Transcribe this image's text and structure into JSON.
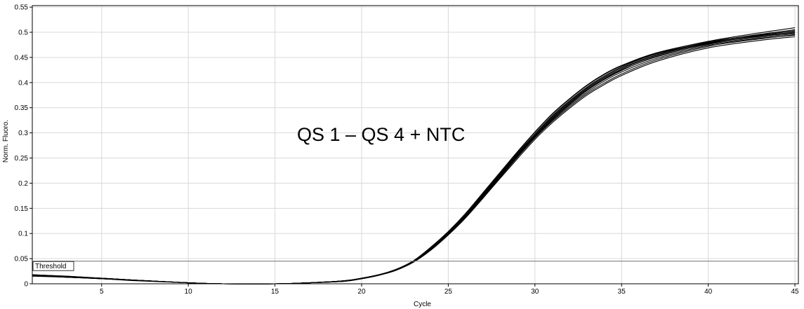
{
  "chart_data": {
    "type": "line",
    "xlabel": "Cycle",
    "ylabel": "Norm. Fluoro.",
    "xlim": [
      1,
      45.2
    ],
    "ylim": [
      0,
      0.553
    ],
    "x_ticks": [
      5,
      10,
      15,
      20,
      25,
      30,
      35,
      40,
      45
    ],
    "y_ticks": [
      0,
      0.05,
      0.1,
      0.15,
      0.2,
      0.25,
      0.3,
      0.35,
      0.4,
      0.45,
      0.5,
      0.55
    ],
    "x_tick_labels": [
      "5",
      "10",
      "15",
      "20",
      "25",
      "30",
      "35",
      "40",
      "45"
    ],
    "y_tick_labels": [
      "0",
      "0.05",
      "0.1",
      "0.15",
      "0.2",
      "0.25",
      "0.3",
      "0.35",
      "0.4",
      "0.45",
      "0.5",
      "0.55"
    ],
    "grid": true,
    "annotation": "QS 1 – QS 4 + NTC",
    "threshold": {
      "label": "Threshold",
      "value": 0.045
    },
    "series": [
      {
        "x": [
          1,
          3,
          5,
          7,
          10,
          12,
          15,
          17,
          19,
          20,
          21,
          22,
          23,
          24,
          25,
          26,
          27,
          28,
          29,
          30,
          31,
          32,
          33,
          34,
          35,
          37,
          40,
          43,
          45
        ],
        "y": [
          0.017,
          0.014,
          0.011,
          0.007,
          0.002,
          0.0,
          0.0,
          0.002,
          0.006,
          0.011,
          0.018,
          0.028,
          0.045,
          0.07,
          0.1,
          0.135,
          0.175,
          0.215,
          0.255,
          0.293,
          0.328,
          0.358,
          0.385,
          0.407,
          0.425,
          0.451,
          0.477,
          0.494,
          0.503
        ]
      },
      {
        "x": [
          1,
          3,
          5,
          7,
          10,
          12,
          15,
          17,
          19,
          20,
          21,
          22,
          23,
          24,
          25,
          26,
          27,
          28,
          29,
          30,
          31,
          32,
          33,
          34,
          35,
          37,
          40,
          43,
          45
        ],
        "y": [
          0.018,
          0.015,
          0.011,
          0.007,
          0.002,
          0.0,
          0.0,
          0.002,
          0.006,
          0.011,
          0.018,
          0.028,
          0.046,
          0.072,
          0.103,
          0.139,
          0.18,
          0.221,
          0.262,
          0.301,
          0.337,
          0.367,
          0.394,
          0.416,
          0.433,
          0.458,
          0.482,
          0.499,
          0.509
        ]
      },
      {
        "x": [
          1,
          3,
          5,
          7,
          10,
          12,
          15,
          17,
          19,
          20,
          21,
          22,
          23,
          24,
          25,
          26,
          27,
          28,
          29,
          30,
          31,
          32,
          33,
          34,
          35,
          37,
          40,
          43,
          45
        ],
        "y": [
          0.016,
          0.013,
          0.01,
          0.007,
          0.002,
          0.0,
          0.0,
          0.002,
          0.005,
          0.01,
          0.017,
          0.027,
          0.044,
          0.068,
          0.098,
          0.133,
          0.172,
          0.212,
          0.252,
          0.29,
          0.323,
          0.352,
          0.378,
          0.399,
          0.417,
          0.445,
          0.472,
          0.487,
          0.495
        ]
      },
      {
        "x": [
          1,
          3,
          5,
          7,
          10,
          12,
          15,
          17,
          19,
          20,
          21,
          22,
          23,
          24,
          25,
          26,
          27,
          28,
          29,
          30,
          31,
          32,
          33,
          34,
          35,
          37,
          40,
          43,
          45
        ],
        "y": [
          0.017,
          0.014,
          0.011,
          0.007,
          0.002,
          0.0,
          0.0,
          0.002,
          0.006,
          0.011,
          0.018,
          0.028,
          0.045,
          0.071,
          0.101,
          0.137,
          0.177,
          0.218,
          0.258,
          0.297,
          0.332,
          0.362,
          0.389,
          0.411,
          0.429,
          0.455,
          0.48,
          0.496,
          0.505
        ]
      },
      {
        "x": [
          1,
          3,
          5,
          7,
          10,
          12,
          15,
          17,
          19,
          20,
          21,
          22,
          23,
          24,
          25,
          26,
          27,
          28,
          29,
          30,
          31,
          32,
          33,
          34,
          35,
          37,
          40,
          43,
          45
        ],
        "y": [
          0.015,
          0.013,
          0.01,
          0.006,
          0.002,
          0.0,
          0.0,
          0.002,
          0.005,
          0.01,
          0.017,
          0.027,
          0.043,
          0.067,
          0.097,
          0.131,
          0.17,
          0.21,
          0.249,
          0.287,
          0.32,
          0.349,
          0.375,
          0.396,
          0.414,
          0.442,
          0.469,
          0.484,
          0.491
        ]
      },
      {
        "x": [
          1,
          3,
          5,
          7,
          10,
          12,
          15,
          17,
          19,
          20,
          21,
          22,
          23,
          24,
          25,
          26,
          27,
          28,
          29,
          30,
          31,
          32,
          33,
          34,
          35,
          37,
          40,
          43,
          45
        ],
        "y": [
          0.016,
          0.014,
          0.011,
          0.007,
          0.002,
          0.0,
          0.0,
          0.002,
          0.006,
          0.011,
          0.018,
          0.028,
          0.045,
          0.071,
          0.102,
          0.138,
          0.178,
          0.219,
          0.26,
          0.298,
          0.334,
          0.364,
          0.391,
          0.413,
          0.431,
          0.457,
          0.479,
          0.493,
          0.5
        ]
      },
      {
        "x": [
          1,
          3,
          5,
          7,
          10,
          12,
          15,
          17,
          19,
          20,
          21,
          22,
          23,
          24,
          25,
          26,
          27,
          28,
          29,
          30,
          31,
          32,
          33,
          34,
          35,
          37,
          40,
          43,
          45
        ],
        "y": [
          0.017,
          0.014,
          0.01,
          0.007,
          0.002,
          0.0,
          0.0,
          0.002,
          0.006,
          0.011,
          0.018,
          0.028,
          0.045,
          0.07,
          0.1,
          0.135,
          0.174,
          0.214,
          0.254,
          0.292,
          0.327,
          0.357,
          0.384,
          0.406,
          0.424,
          0.452,
          0.476,
          0.49,
          0.497
        ]
      },
      {
        "x": [
          1,
          3,
          5,
          7,
          10,
          12,
          15,
          17,
          19,
          20,
          21,
          22,
          23,
          24,
          25,
          26,
          27,
          28,
          29,
          30,
          31,
          32,
          33,
          34,
          35,
          37,
          40,
          43,
          45
        ],
        "y": [
          0.018,
          0.015,
          0.011,
          0.007,
          0.002,
          0.0,
          0.0,
          0.002,
          0.006,
          0.011,
          0.018,
          0.029,
          0.046,
          0.073,
          0.104,
          0.14,
          0.181,
          0.222,
          0.263,
          0.302,
          0.338,
          0.368,
          0.395,
          0.417,
          0.434,
          0.459,
          0.481,
          0.495,
          0.502
        ]
      },
      {
        "x": [
          1,
          3,
          5,
          7,
          10,
          12,
          15,
          17,
          19,
          20,
          21,
          22,
          23,
          24,
          25,
          26,
          27,
          28,
          29,
          30,
          31,
          32,
          33,
          34,
          35,
          37,
          40,
          43,
          45
        ],
        "y": [
          0.016,
          0.013,
          0.01,
          0.007,
          0.002,
          0.0,
          0.0,
          0.002,
          0.005,
          0.01,
          0.017,
          0.027,
          0.044,
          0.069,
          0.099,
          0.134,
          0.173,
          0.213,
          0.253,
          0.291,
          0.325,
          0.355,
          0.381,
          0.403,
          0.421,
          0.448,
          0.474,
          0.488,
          0.494
        ]
      },
      {
        "x": [
          1,
          3,
          5,
          7,
          10,
          12,
          15,
          17,
          19,
          20,
          21,
          22,
          23,
          24,
          25,
          26,
          27,
          28,
          29,
          30,
          31,
          32,
          33,
          34,
          35,
          37,
          40,
          43,
          45
        ],
        "y": [
          0.017,
          0.014,
          0.011,
          0.007,
          0.002,
          0.0,
          0.0,
          0.002,
          0.006,
          0.011,
          0.018,
          0.028,
          0.045,
          0.071,
          0.101,
          0.136,
          0.176,
          0.216,
          0.256,
          0.295,
          0.33,
          0.36,
          0.387,
          0.409,
          0.427,
          0.454,
          0.478,
          0.492,
          0.499
        ]
      }
    ],
    "line_color": "#000000",
    "grid_color": "#d9d9d9",
    "threshold_color": "#808080"
  }
}
